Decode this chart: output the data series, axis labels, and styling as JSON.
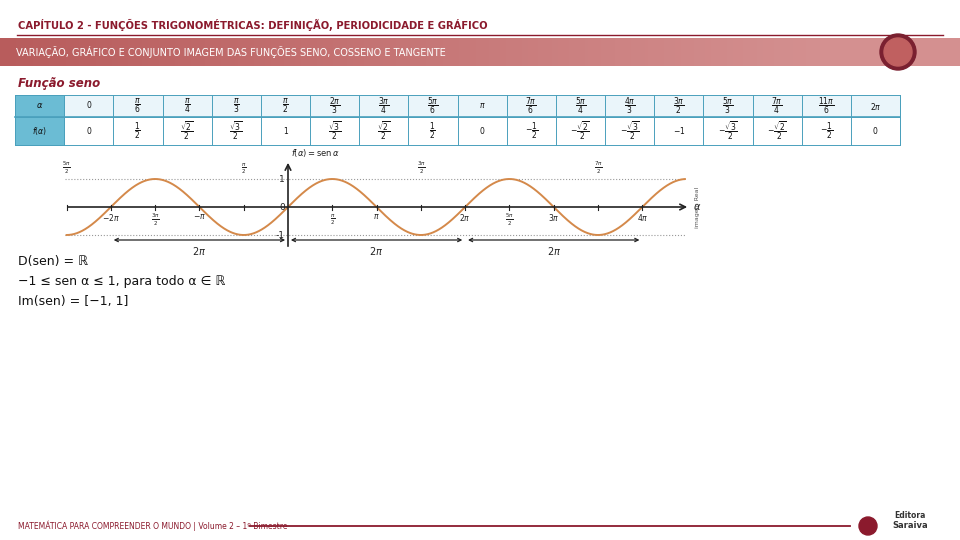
{
  "title": "CAPÍTULO 2 - FUNÇÕES TRIGONOMÉTRICAS: DEFINIÇÃO, PERIODICIDADE E GRÁFICO",
  "subtitle": "VARIAÇÃO, GRÁFICO E CONJUNTO IMAGEM DAS FUNÇÕES SENO, COSSENO E TANGENTE",
  "section_title": "Função seno",
  "title_color": "#8B1A2D",
  "subtitle_color_left": "#C06060",
  "subtitle_color_right": "#D4908A",
  "subtitle_text_color": "#ffffff",
  "table_header_bg": "#6BBCD4",
  "table_border_color": "#4AA0BC",
  "table_row1_bg": "#EAF5FA",
  "table_row2_bg": "#ffffff",
  "curve_color": "#D4894A",
  "axis_color": "#222222",
  "dotted_line_color": "#999999",
  "footer_text": "MATEMÁTICA PARA COMPREENDER O MUNDO | Volume 2 – 1º Bimestre",
  "footer_color": "#8B1A2D",
  "footer_line_color": "#8B1A2D",
  "bg_color": "#ffffff",
  "domain_text": "D(sen) = ℝ",
  "range_text1": "−1 ≤ sen α ≤ 1, para todo α ∈ ℝ",
  "range_text2": "Im(sen) = [−1, 1]"
}
